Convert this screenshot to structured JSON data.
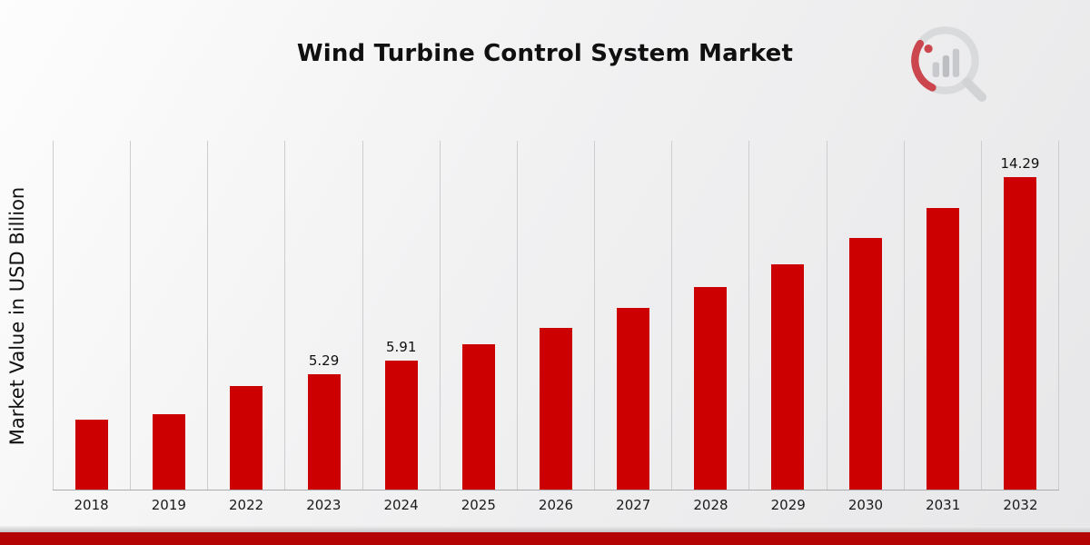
{
  "chart_data": {
    "type": "bar",
    "title": "Wind Turbine Control System Market",
    "xlabel": "",
    "ylabel": "Market Value in USD Billion",
    "categories": [
      "2018",
      "2019",
      "2022",
      "2023",
      "2024",
      "2025",
      "2026",
      "2027",
      "2028",
      "2029",
      "2030",
      "2031",
      "2032"
    ],
    "values": [
      3.2,
      3.45,
      4.75,
      5.29,
      5.91,
      6.65,
      7.4,
      8.3,
      9.25,
      10.3,
      11.5,
      12.9,
      14.29
    ],
    "data_labels": [
      null,
      null,
      null,
      "5.29",
      "5.91",
      null,
      null,
      null,
      null,
      null,
      null,
      null,
      "14.29"
    ],
    "ylim": [
      0,
      16
    ],
    "grid": "vertical-only",
    "legend": "none",
    "bar_color": "#CC0000"
  },
  "branding": {
    "logo": "market-research-magnifier-bar-logo",
    "accent_red": "#CC0000",
    "stripe_color": "#B40404"
  }
}
